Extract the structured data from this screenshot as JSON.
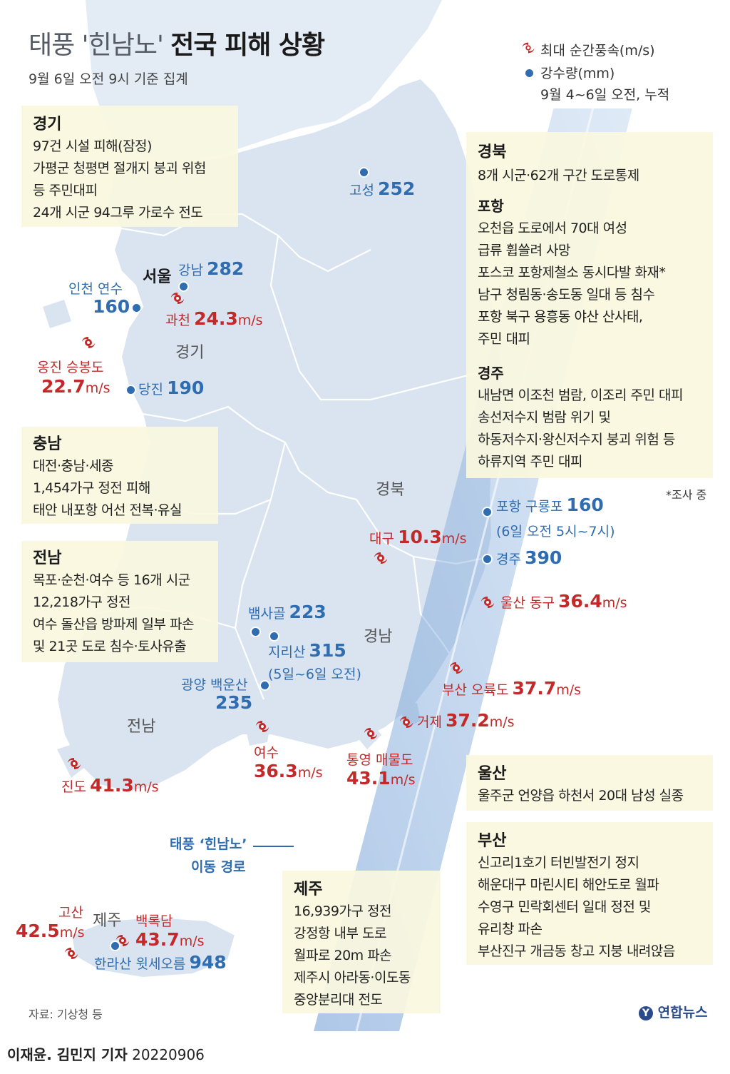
{
  "title": {
    "prefix": "태풍 '힌남노'",
    "main": "전국 피해 상황"
  },
  "subtitle": "9월 6일 오전 9시 기준 집계",
  "legend": {
    "wind": "최대 순간풍속(m/s)",
    "rain": "강수량(mm)",
    "rain_note": "9월 4~6일 오전, 누적"
  },
  "colors": {
    "wind": "#c22a2a",
    "rain": "#2f6db0",
    "land": "#dde7f1",
    "box": "#faf7de"
  },
  "boxes": {
    "gyeonggi": {
      "title": "경기",
      "lines": [
        "97건 시설 피해(잠정)",
        "가평군 청평면 절개지 붕괴 위험",
        "등 주민대피",
        "24개 시군 94그루 가로수 전도"
      ]
    },
    "chungnam": {
      "title": "충남",
      "lines": [
        "대전·충남·세종",
        "1,454가구 정전 피해",
        "태안 내포항 어선 전복·유실"
      ]
    },
    "jeonnam": {
      "title": "전남",
      "lines": [
        "목포·순천·여수 등 16개 시군",
        "12,218가구 정전",
        "여수 돌산읍 방파제 일부 파손",
        "및 21곳 도로 침수·토사유출"
      ]
    },
    "gyeongbuk": {
      "title": "경북",
      "lines": [
        "8개 시군·62개 구간 도로통제"
      ],
      "pohang_title": "포항",
      "pohang": [
        "오천읍 도로에서 70대 여성",
        "급류 휩쓸려 사망",
        "포스코 포항제철소 동시다발 화재*",
        "남구 청림동·송도동 일대 등 침수",
        "포항 북구 용흥동 야산 산사태,",
        "주민 대피"
      ],
      "gyeongju_title": "경주",
      "gyeongju": [
        "내남면 이조천 범람, 이조리 주민 대피",
        "송선저수지 범람 위기 및",
        "하동저수지·왕신저수지 붕괴 위험 등",
        "하류지역 주민 대피"
      ]
    },
    "ulsan": {
      "title": "울산",
      "lines": [
        "울주군 언양읍 하천서 20대 남성 실종"
      ]
    },
    "busan": {
      "title": "부산",
      "lines": [
        "신고리1호기 터빈발전기 정지",
        "해운대구 마린시티 해안도로 월파",
        "수영구 민락회센터 일대 정전 및",
        "유리창 파손",
        "부산진구 개금동 창고 지붕 내려앉음"
      ]
    },
    "jeju": {
      "title": "제주",
      "lines": [
        "16,939가구 정전",
        "강정항 내부 도로",
        "월파로 20m 파손",
        "제주시 아라동·이도동",
        "중앙분리대 전도"
      ]
    }
  },
  "footnote": "*조사 중",
  "regions": {
    "gyeonggi": "경기",
    "gyeongbuk": "경북",
    "gyeongnam": "경남",
    "jeonnam": "전남",
    "jeju": "제주"
  },
  "seoul": "서울",
  "rain": {
    "goseong": {
      "place": "고성",
      "value": "252"
    },
    "gangnam": {
      "place": "강남",
      "value": "282"
    },
    "incheon": {
      "place": "인천 연수",
      "value": "160"
    },
    "dangjin": {
      "place": "당진",
      "value": "190"
    },
    "pohang": {
      "place": "포항 구룡포",
      "value": "160",
      "note": "(6일 오전 5시~7시)"
    },
    "gyeongju": {
      "place": "경주",
      "value": "390"
    },
    "baemsagol": {
      "place": "뱀사골",
      "value": "223"
    },
    "jirisan": {
      "place": "지리산",
      "value": "315",
      "note": "(5일~6일 오전)"
    },
    "gwangyang": {
      "place": "광양 백운산",
      "value": "235"
    },
    "hallasan": {
      "place": "한라산 윗세오름",
      "value": "948"
    }
  },
  "wind_unit": "m/s",
  "wind": {
    "gwacheon": {
      "place": "과천",
      "value": "24.3"
    },
    "ongjin": {
      "place": "옹진 승봉도",
      "value": "22.7"
    },
    "daegu": {
      "place": "대구",
      "value": "10.3"
    },
    "ulsan": {
      "place": "울산 동구",
      "value": "36.4"
    },
    "busan": {
      "place": "부산 오륙도",
      "value": "37.7"
    },
    "geoje": {
      "place": "거제",
      "value": "37.2"
    },
    "tongyeong": {
      "place": "통영 매물도",
      "value": "43.1"
    },
    "yeosu": {
      "place": "여수",
      "value": "36.3"
    },
    "jindo": {
      "place": "진도",
      "value": "41.3"
    },
    "gosan": {
      "place": "고산",
      "value": "42.5"
    },
    "baengnokdam": {
      "place": "백록담",
      "value": "43.7"
    }
  },
  "track": {
    "line1": "태풍 ‘힌남노’",
    "line2": "이동 경로"
  },
  "source": "자료: 기상청 등",
  "logo": "연합뉴스",
  "credit": {
    "author": "이재윤. 김민지 기자",
    "date": "20220906"
  }
}
